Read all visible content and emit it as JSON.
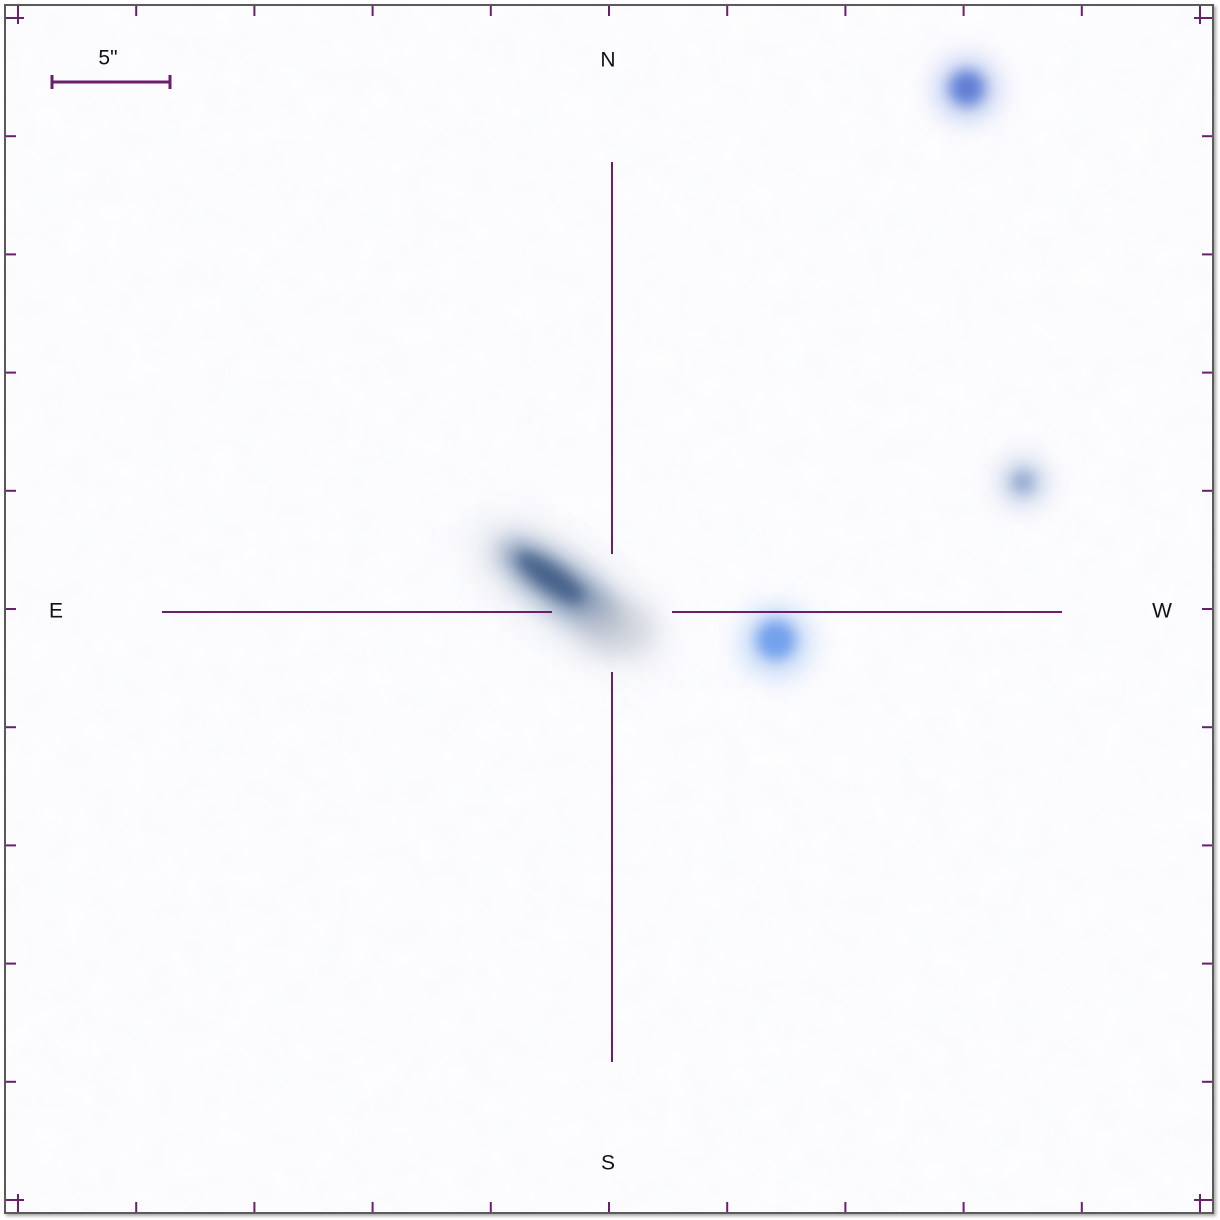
{
  "compass": {
    "north": "N",
    "south": "S",
    "east": "E",
    "west": "W"
  },
  "scale_bar": {
    "label": "5\""
  },
  "colors": {
    "overlay": "#6a1f6e",
    "background": "#fdfdfe",
    "galaxy": "#3f5f8f",
    "star": "#5b8ee8"
  }
}
